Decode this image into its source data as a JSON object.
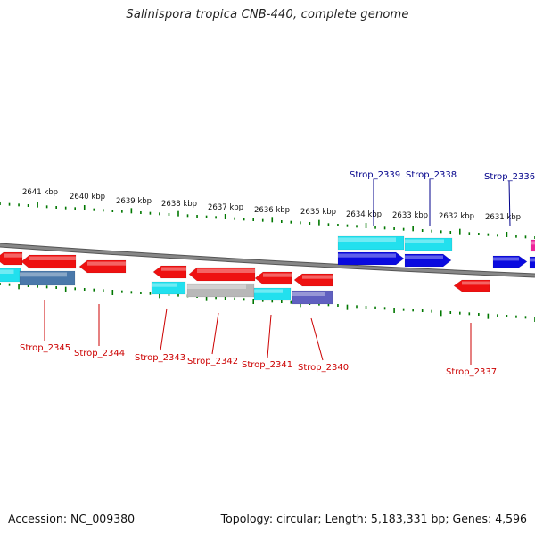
{
  "title": "Salinispora tropica CNB-440, complete genome",
  "footer": {
    "accession": "Accession: NC_009380",
    "stats": "Topology: circular; Length: 5,183,331 bp; Genes: 4,596"
  },
  "colors": {
    "red": "#ee1111",
    "blue": "#0a0adf",
    "cyan": "#22e0ee",
    "steel": "#4a78aa",
    "gray": "#b8b8b8",
    "purple": "#6060c0",
    "pink": "#ee2299",
    "tick": "#007700",
    "backbone": "#888888",
    "label_top": "#00008b",
    "label_bottom": "#cc0000"
  },
  "kbp_labels": [
    "2641 kbp",
    "2640 kbp",
    "2639 kbp",
    "2638 kbp",
    "2637 kbp",
    "2636 kbp",
    "2635 kbp",
    "2634 kbp",
    "2633 kbp",
    "2632 kbp",
    "2631 kbp"
  ],
  "top_labels": [
    "Strop_2339",
    "Strop_2338",
    "Strop_2336"
  ],
  "bottom_labels": [
    "Strop_2345",
    "Strop_2344",
    "Strop_2343",
    "Strop_2342",
    "Strop_2341",
    "Strop_2340",
    "Strop_2337"
  ]
}
